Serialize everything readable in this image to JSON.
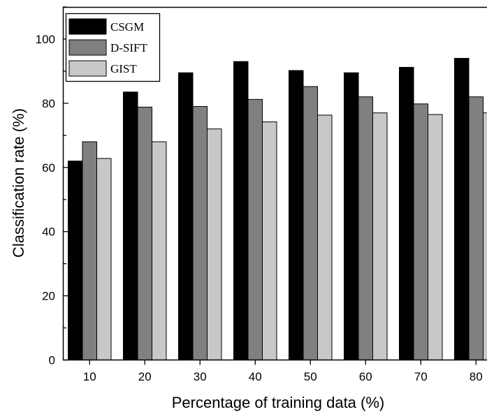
{
  "chart_data": {
    "type": "bar",
    "title": "",
    "xlabel": "Percentage of training data (%)",
    "ylabel": "Classification rate (%)",
    "categories": [
      "10",
      "20",
      "30",
      "40",
      "50",
      "60",
      "70",
      "80"
    ],
    "ylim": [
      0,
      110
    ],
    "yticks": [
      "0",
      "20",
      "40",
      "60",
      "80",
      "100"
    ],
    "series": [
      {
        "name": "CSGM",
        "color": "#000000",
        "values": [
          62.0,
          83.5,
          89.5,
          93.0,
          90.2,
          89.5,
          91.2,
          94.0
        ]
      },
      {
        "name": "D-SIFT",
        "color": "#808080",
        "values": [
          68.0,
          78.8,
          79.0,
          81.2,
          85.2,
          82.0,
          79.8,
          82.0
        ]
      },
      {
        "name": "GIST",
        "color": "#c8c8c8",
        "values": [
          62.8,
          68.0,
          72.0,
          74.2,
          76.3,
          77.0,
          76.5,
          77.0
        ]
      }
    ],
    "legend_position": "top-left",
    "grid": false
  }
}
